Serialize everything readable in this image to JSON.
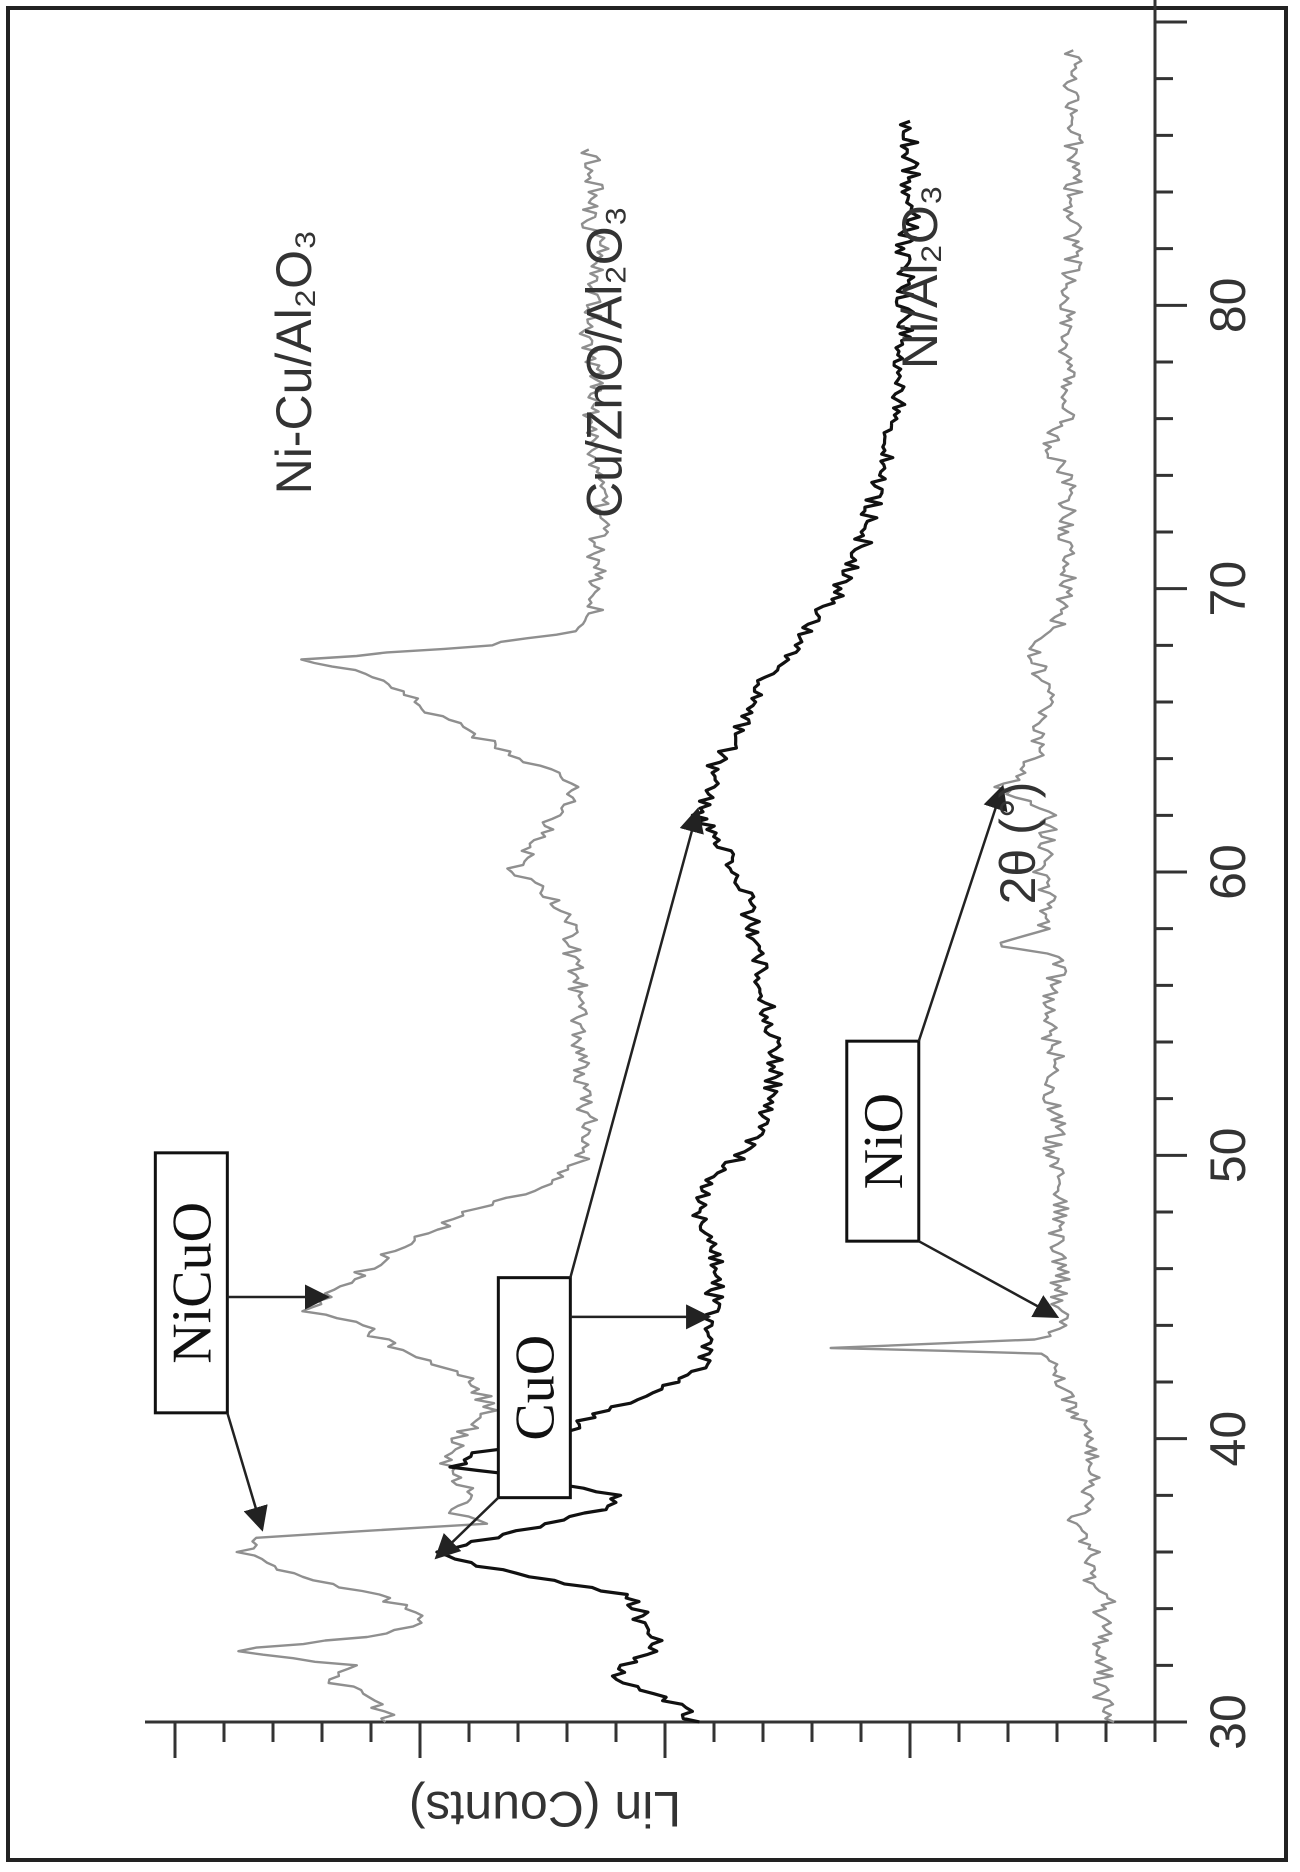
{
  "chart_data": {
    "type": "line",
    "x_axis": {
      "label": "2θ (°)",
      "range": [
        30,
        90
      ],
      "ticks": [
        30,
        40,
        50,
        60,
        70,
        80
      ],
      "tick_labels": [
        "30",
        "40",
        "50",
        "60",
        "70",
        "80"
      ]
    },
    "y_axis": {
      "label": "Lin (Counts)",
      "tick_labels": []
    },
    "grid": false,
    "series": [
      {
        "name": "Ni-Cu/Al₂O₃",
        "color": "#8f8f8f",
        "points": [
          [
            30,
            0.9
          ],
          [
            31,
            0.95
          ],
          [
            31.5,
            1.02
          ],
          [
            32,
            0.98
          ],
          [
            32.5,
            1.2
          ],
          [
            33,
            0.95
          ],
          [
            33.5,
            0.84
          ],
          [
            34,
            0.88
          ],
          [
            34.5,
            0.92
          ],
          [
            35,
            1.05
          ],
          [
            35.5,
            1.12
          ],
          [
            36,
            1.18
          ],
          [
            36.5,
            1.14
          ],
          [
            37,
            0.72
          ],
          [
            37.5,
            0.8
          ],
          [
            38,
            0.75
          ],
          [
            39,
            0.8
          ],
          [
            40,
            0.78
          ],
          [
            41,
            0.72
          ],
          [
            42,
            0.75
          ],
          [
            43,
            0.88
          ],
          [
            44,
            0.96
          ],
          [
            44.5,
            1.05
          ],
          [
            45,
            1.02
          ],
          [
            46,
            0.95
          ],
          [
            47,
            0.86
          ],
          [
            48,
            0.76
          ],
          [
            49,
            0.6
          ],
          [
            50,
            0.55
          ],
          [
            51,
            0.54
          ],
          [
            52,
            0.55
          ],
          [
            53,
            0.55
          ],
          [
            54,
            0.56
          ],
          [
            55,
            0.56
          ],
          [
            56,
            0.56
          ],
          [
            57,
            0.57
          ],
          [
            58,
            0.57
          ],
          [
            59,
            0.6
          ],
          [
            60,
            0.68
          ],
          [
            61,
            0.64
          ],
          [
            62,
            0.6
          ],
          [
            63,
            0.56
          ],
          [
            64,
            0.66
          ],
          [
            65,
            0.77
          ],
          [
            66,
            0.86
          ],
          [
            67,
            0.95
          ],
          [
            67.5,
            1.07
          ],
          [
            68,
            0.72
          ],
          [
            68.5,
            0.58
          ],
          [
            69,
            0.53
          ],
          [
            70,
            0.52
          ],
          [
            71,
            0.53
          ],
          [
            72,
            0.52
          ],
          [
            73,
            0.52
          ],
          [
            74,
            0.53
          ],
          [
            75,
            0.53
          ],
          [
            76,
            0.54
          ],
          [
            77,
            0.53
          ],
          [
            78,
            0.53
          ],
          [
            79,
            0.54
          ],
          [
            80,
            0.53
          ],
          [
            81,
            0.53
          ],
          [
            82,
            0.52
          ],
          [
            83,
            0.54
          ],
          [
            84,
            0.53
          ],
          [
            85,
            0.53
          ],
          [
            85.5,
            0.54
          ]
        ]
      },
      {
        "name": "Cu/ZnO/Al₂O₃",
        "color": "#111111",
        "points": [
          [
            30,
            0.35
          ],
          [
            30.5,
            0.37
          ],
          [
            31,
            0.42
          ],
          [
            31.5,
            0.5
          ],
          [
            32,
            0.47
          ],
          [
            32.5,
            0.43
          ],
          [
            33,
            0.42
          ],
          [
            33.5,
            0.44
          ],
          [
            34,
            0.45
          ],
          [
            34.5,
            0.48
          ],
          [
            35,
            0.6
          ],
          [
            35.5,
            0.75
          ],
          [
            36,
            0.82
          ],
          [
            36.5,
            0.72
          ],
          [
            37,
            0.62
          ],
          [
            37.5,
            0.52
          ],
          [
            38,
            0.48
          ],
          [
            38.5,
            0.62
          ],
          [
            39,
            0.78
          ],
          [
            39.5,
            0.75
          ],
          [
            40,
            0.6
          ],
          [
            41,
            0.52
          ],
          [
            41.5,
            0.43
          ],
          [
            42,
            0.38
          ],
          [
            42.5,
            0.33
          ],
          [
            43,
            0.32
          ],
          [
            44,
            0.32
          ],
          [
            45,
            0.31
          ],
          [
            46,
            0.31
          ],
          [
            47,
            0.31
          ],
          [
            48,
            0.34
          ],
          [
            49,
            0.33
          ],
          [
            50,
            0.26
          ],
          [
            51,
            0.22
          ],
          [
            52,
            0.2
          ],
          [
            53,
            0.2
          ],
          [
            54,
            0.2
          ],
          [
            55,
            0.21
          ],
          [
            56,
            0.22
          ],
          [
            57,
            0.23
          ],
          [
            58,
            0.24
          ],
          [
            59,
            0.25
          ],
          [
            60,
            0.27
          ],
          [
            61,
            0.3
          ],
          [
            62,
            0.34
          ],
          [
            63,
            0.32
          ],
          [
            64,
            0.3
          ],
          [
            65,
            0.26
          ],
          [
            66,
            0.24
          ],
          [
            67,
            0.21
          ],
          [
            68,
            0.16
          ],
          [
            69,
            0.12
          ],
          [
            70,
            0.08
          ],
          [
            71,
            0.05
          ],
          [
            72,
            0.03
          ],
          [
            73,
            0.02
          ],
          [
            74,
            0.0
          ],
          [
            75,
            -0.01
          ],
          [
            76,
            -0.02
          ],
          [
            77,
            -0.03
          ],
          [
            78,
            -0.03
          ],
          [
            79,
            -0.04
          ],
          [
            80,
            -0.04
          ],
          [
            81,
            -0.04
          ],
          [
            82,
            -0.04
          ],
          [
            83,
            -0.05
          ],
          [
            84,
            -0.05
          ],
          [
            85,
            -0.05
          ],
          [
            86,
            -0.05
          ],
          [
            86.5,
            -0.05
          ]
        ]
      },
      {
        "name": "Ni/Al₂O₃",
        "color": "#8f8f8f",
        "points": [
          [
            30,
            -0.42
          ],
          [
            31,
            -0.4
          ],
          [
            32,
            -0.41
          ],
          [
            32.5,
            -0.38
          ],
          [
            33,
            -0.41
          ],
          [
            34,
            -0.4
          ],
          [
            34.5,
            -0.42
          ],
          [
            35,
            -0.38
          ],
          [
            36,
            -0.39
          ],
          [
            37,
            -0.35
          ],
          [
            38,
            -0.38
          ],
          [
            39,
            -0.39
          ],
          [
            40,
            -0.37
          ],
          [
            41,
            -0.35
          ],
          [
            42,
            -0.33
          ],
          [
            43,
            -0.3
          ],
          [
            43.2,
            0.08
          ],
          [
            43.5,
            -0.28
          ],
          [
            44,
            -0.33
          ],
          [
            45,
            -0.32
          ],
          [
            46,
            -0.33
          ],
          [
            47,
            -0.32
          ],
          [
            48,
            -0.33
          ],
          [
            49,
            -0.32
          ],
          [
            50,
            -0.31
          ],
          [
            51,
            -0.32
          ],
          [
            52,
            -0.31
          ],
          [
            53,
            -0.32
          ],
          [
            54,
            -0.31
          ],
          [
            55,
            -0.31
          ],
          [
            56,
            -0.31
          ],
          [
            57,
            -0.33
          ],
          [
            57.5,
            -0.2
          ],
          [
            58,
            -0.3
          ],
          [
            59,
            -0.31
          ],
          [
            60,
            -0.29
          ],
          [
            61,
            -0.3
          ],
          [
            62,
            -0.31
          ],
          [
            63,
            -0.22
          ],
          [
            64,
            -0.28
          ],
          [
            65,
            -0.28
          ],
          [
            66,
            -0.3
          ],
          [
            67,
            -0.29
          ],
          [
            68,
            -0.28
          ],
          [
            69,
            -0.33
          ],
          [
            70,
            -0.34
          ],
          [
            72,
            -0.34
          ],
          [
            74,
            -0.34
          ],
          [
            75,
            -0.3
          ],
          [
            76,
            -0.34
          ],
          [
            78,
            -0.34
          ],
          [
            80,
            -0.34
          ],
          [
            82,
            -0.35
          ],
          [
            84,
            -0.35
          ],
          [
            86,
            -0.35
          ],
          [
            88,
            -0.35
          ],
          [
            89,
            -0.35
          ]
        ]
      }
    ],
    "annotations": [
      {
        "text": "NiCuO",
        "targets": [
          [
            36.8,
            1.14
          ],
          [
            45,
            1.02
          ]
        ]
      },
      {
        "text": "CuO",
        "targets": [
          [
            35.8,
            0.82
          ],
          [
            44.3,
            0.32
          ]
        ]
      },
      {
        "text": "CuO",
        "targets": [
          [
            62.2,
            0.34
          ]
        ]
      },
      {
        "text": "NiO",
        "targets": [
          [
            44.3,
            -0.32
          ],
          [
            63,
            -0.22
          ]
        ]
      }
    ]
  }
}
